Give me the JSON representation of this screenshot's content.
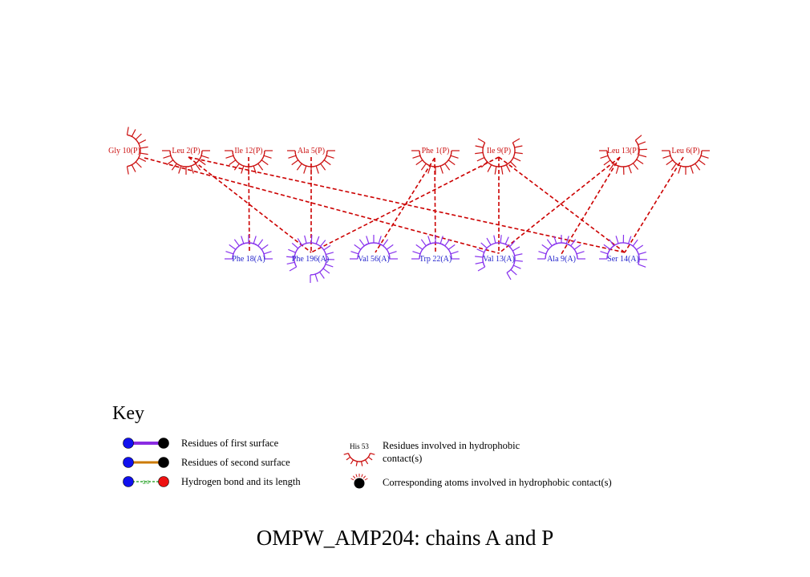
{
  "colors": {
    "chain_p": "#cc1111",
    "chain_a": "#8833ee",
    "label_a": "#2222cc",
    "contact_line": "#cc0000",
    "first_surface_bond": "#8a2be2",
    "second_surface_bond": "#cc7a00",
    "hbond_line": "#119911",
    "atom_blue": "#1111ee",
    "atom_black": "#000000",
    "atom_red": "#ee1111"
  },
  "residues_p": [
    {
      "id": "gly10",
      "label": "Gly 10(P)"
    },
    {
      "id": "leu2",
      "label": "Leu 2(P)"
    },
    {
      "id": "ile12",
      "label": "Ile 12(P)"
    },
    {
      "id": "ala5",
      "label": "Ala 5(P)"
    },
    {
      "id": "phe1",
      "label": "Phe 1(P)"
    },
    {
      "id": "ile9",
      "label": "Ile 9(P)"
    },
    {
      "id": "leu13",
      "label": "Leu 13(P)"
    },
    {
      "id": "leu6",
      "label": "Leu 6(P)"
    }
  ],
  "residues_a": [
    {
      "id": "phe18",
      "label": "Phe 18(A)"
    },
    {
      "id": "phe196",
      "label": "Phe 196(A)"
    },
    {
      "id": "val56",
      "label": "Val 56(A)"
    },
    {
      "id": "trp22",
      "label": "Trp 22(A)"
    },
    {
      "id": "val13",
      "label": "Val 13(A)"
    },
    {
      "id": "ala9",
      "label": "Ala 9(A)"
    },
    {
      "id": "ser14",
      "label": "Ser 14(A)"
    }
  ],
  "contacts": [
    [
      "gly10",
      "val13"
    ],
    [
      "leu2",
      "phe196"
    ],
    [
      "leu2",
      "ser14"
    ],
    [
      "ile12",
      "phe18"
    ],
    [
      "ala5",
      "phe196"
    ],
    [
      "phe1",
      "val56"
    ],
    [
      "phe1",
      "trp22"
    ],
    [
      "ile9",
      "phe196"
    ],
    [
      "ile9",
      "val13"
    ],
    [
      "ile9",
      "ser14"
    ],
    [
      "leu13",
      "val13"
    ],
    [
      "leu13",
      "ala9"
    ],
    [
      "leu6",
      "ser14"
    ]
  ],
  "key": {
    "title": "Key",
    "first_surface": "Residues of first surface",
    "second_surface": "Residues of second surface",
    "hbond": "Hydrogen bond and its length",
    "hbond_length": "3.0",
    "hydrophobic_example": "His 53",
    "hydrophobic_line1": "Residues involved in hydrophobic",
    "hydrophobic_line2": "contact(s)",
    "atoms": "Corresponding atoms involved in hydrophobic contact(s)"
  },
  "footer": {
    "title": "OMPW_AMP204: chains A and P"
  }
}
